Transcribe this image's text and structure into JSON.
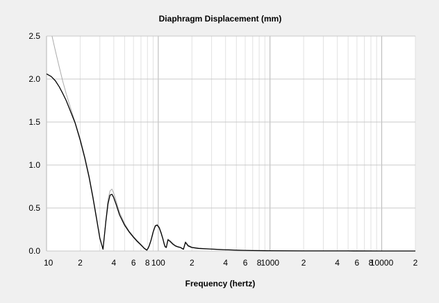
{
  "chart_data": {
    "type": "line",
    "title": "Diaphragm Displacement (mm)",
    "xlabel": "Frequency (hertz)",
    "ylabel": "",
    "xscale": "log",
    "xlim": [
      10,
      20000
    ],
    "ylim": [
      0,
      2.5
    ],
    "grid": true,
    "legend": "none",
    "x_tick_labels": [
      {
        "value": 10,
        "label": "10"
      },
      {
        "value": 20,
        "label": "2"
      },
      {
        "value": 40,
        "label": "4"
      },
      {
        "value": 60,
        "label": "6"
      },
      {
        "value": 80,
        "label": "8"
      },
      {
        "value": 100,
        "label": "100"
      },
      {
        "value": 200,
        "label": "2"
      },
      {
        "value": 400,
        "label": "4"
      },
      {
        "value": 600,
        "label": "6"
      },
      {
        "value": 800,
        "label": "8"
      },
      {
        "value": 1000,
        "label": "1000"
      },
      {
        "value": 2000,
        "label": "2"
      },
      {
        "value": 4000,
        "label": "4"
      },
      {
        "value": 6000,
        "label": "6"
      },
      {
        "value": 8000,
        "label": "8"
      },
      {
        "value": 10000,
        "label": "10000"
      },
      {
        "value": 20000,
        "label": "2"
      }
    ],
    "y_tick_labels": [
      {
        "value": 0.0,
        "label": "0.0"
      },
      {
        "value": 0.5,
        "label": "0.5"
      },
      {
        "value": 1.0,
        "label": "1.0"
      },
      {
        "value": 1.5,
        "label": "1.5"
      },
      {
        "value": 2.0,
        "label": "2.0"
      },
      {
        "value": 2.5,
        "label": "2.5"
      }
    ],
    "series": [
      {
        "color": "#000000",
        "x": [
          10,
          11,
          12,
          13,
          14,
          15,
          16,
          18,
          20,
          22,
          24,
          26,
          28,
          30,
          32,
          34,
          35.5,
          37,
          38.5,
          40,
          42,
          45,
          50,
          55,
          60,
          65,
          70,
          75,
          79,
          81,
          83,
          86,
          90,
          94,
          98,
          102,
          106,
          110,
          113,
          115,
          118,
          122,
          128,
          135,
          142,
          148,
          152,
          158,
          163,
          168,
          175,
          185,
          200,
          230,
          270,
          320,
          380,
          450,
          550,
          700,
          1000,
          2000,
          5000,
          10000,
          20000
        ],
        "y": [
          2.06,
          2.03,
          1.98,
          1.91,
          1.83,
          1.75,
          1.66,
          1.49,
          1.29,
          1.08,
          0.86,
          0.62,
          0.38,
          0.15,
          0.02,
          0.35,
          0.55,
          0.65,
          0.66,
          0.62,
          0.54,
          0.42,
          0.3,
          0.22,
          0.16,
          0.11,
          0.07,
          0.03,
          0.01,
          0.03,
          0.06,
          0.12,
          0.22,
          0.29,
          0.3,
          0.27,
          0.21,
          0.14,
          0.08,
          0.05,
          0.04,
          0.13,
          0.11,
          0.08,
          0.06,
          0.05,
          0.045,
          0.04,
          0.03,
          0.02,
          0.1,
          0.06,
          0.04,
          0.03,
          0.025,
          0.02,
          0.015,
          0.012,
          0.008,
          0.005,
          0.003,
          0.001,
          0.0005,
          0.0002,
          0.0001
        ]
      },
      {
        "color": "#aaaaaa",
        "x": [
          11.2,
          12,
          13,
          14,
          15,
          16,
          18,
          20,
          22,
          24,
          26,
          28,
          30,
          32,
          34,
          35.5,
          37,
          38.5,
          40,
          42,
          45,
          50,
          55,
          60,
          65,
          70,
          75,
          79,
          81,
          83,
          86,
          90,
          94,
          98,
          102,
          106,
          110,
          113,
          115,
          118,
          122,
          128,
          135,
          142,
          148,
          152,
          158,
          163,
          168,
          175,
          185,
          200,
          230,
          270,
          320,
          380,
          450,
          550,
          700,
          1000,
          2000,
          5000,
          10000,
          20000
        ],
        "y": [
          2.5,
          2.33,
          2.14,
          1.97,
          1.83,
          1.71,
          1.5,
          1.31,
          1.1,
          0.88,
          0.64,
          0.4,
          0.16,
          0.02,
          0.37,
          0.6,
          0.7,
          0.72,
          0.67,
          0.58,
          0.45,
          0.32,
          0.23,
          0.17,
          0.12,
          0.08,
          0.035,
          0.012,
          0.035,
          0.07,
          0.13,
          0.23,
          0.3,
          0.31,
          0.28,
          0.22,
          0.15,
          0.09,
          0.06,
          0.045,
          0.14,
          0.12,
          0.09,
          0.065,
          0.055,
          0.05,
          0.045,
          0.035,
          0.025,
          0.11,
          0.07,
          0.045,
          0.033,
          0.027,
          0.022,
          0.017,
          0.013,
          0.009,
          0.006,
          0.003,
          0.001,
          0.0005,
          0.0002,
          0.0001
        ]
      }
    ]
  }
}
